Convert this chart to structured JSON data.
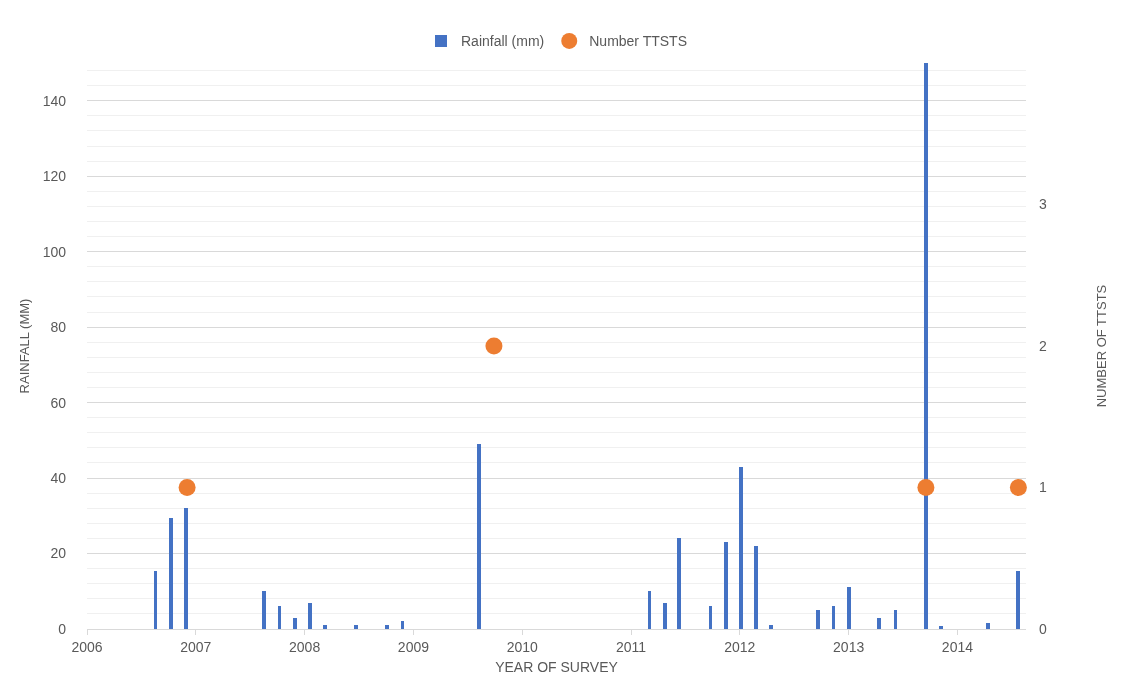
{
  "chart_data": {
    "type": "bar",
    "xlabel": "YEAR OF SURVEY",
    "ylabel": "RAINFALL (MM)",
    "y2label": "NUMBER OF TTSTS",
    "xlim": [
      2006,
      2014.63
    ],
    "xticks": [
      2006,
      2007,
      2008,
      2009,
      2010,
      2011,
      2012,
      2013,
      2014
    ],
    "ylim": [
      0,
      150
    ],
    "yticks": [
      0,
      20,
      40,
      60,
      80,
      100,
      120,
      140
    ],
    "y2lim": [
      0,
      4
    ],
    "y2ticks": [
      0,
      1,
      2,
      3
    ],
    "grid": "y",
    "legend": "top",
    "series": [
      {
        "name": "Rainfall (mm)",
        "color": "#4472c4",
        "x": [
          2006.63,
          2006.77,
          2006.91,
          2007.63,
          2007.77,
          2007.91,
          2008.05,
          2008.19,
          2008.47,
          2008.76,
          2008.9,
          2009.6,
          2011.17,
          2011.31,
          2011.44,
          2011.73,
          2011.87,
          2012.01,
          2012.15,
          2012.29,
          2012.72,
          2012.86,
          2013,
          2013.28,
          2013.43,
          2013.71,
          2013.85,
          2014.28,
          2014.56
        ],
        "values": [
          15.5,
          29.5,
          32,
          10,
          6,
          3,
          7,
          1,
          1,
          1,
          2,
          49,
          10,
          7,
          24,
          6,
          23,
          43,
          22,
          1,
          5,
          6,
          11,
          3,
          5,
          150,
          0.7,
          1.5,
          15.5
        ]
      },
      {
        "name": "Number TTSTS",
        "type": "scatter",
        "axis": "y2",
        "marker": "circle",
        "color": "#ed7d31",
        "x": [
          2006.92,
          2009.74,
          2013.71,
          2014.56
        ],
        "values": [
          1,
          2,
          1,
          1
        ]
      }
    ]
  }
}
